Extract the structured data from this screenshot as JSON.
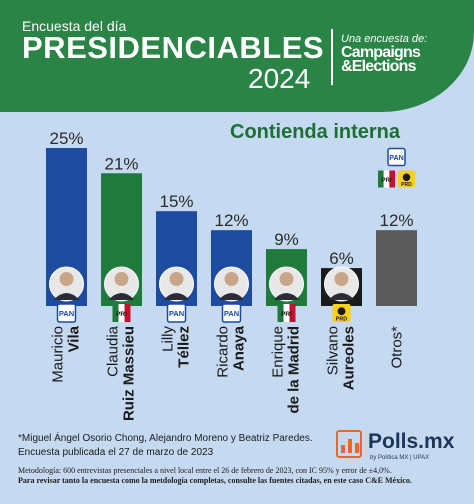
{
  "header": {
    "kicker": "Encuesta del día",
    "title": "PRESIDENCIABLES",
    "year": "2024",
    "partner_kicker": "Una encuesta de:",
    "partner_name": "Campaigns &Elections"
  },
  "subtitle": "Contienda interna",
  "chart_data": {
    "type": "bar",
    "categories": [
      "Mauricio Vila",
      "Claudia Ruiz Massieu",
      "Lilly Téllez",
      "Ricardo Anaya",
      "Enrique de la Madrid",
      "Silvano Aureoles",
      "Otros*"
    ],
    "values": [
      25,
      21,
      15,
      12,
      9,
      6,
      12
    ],
    "value_labels": [
      "25%",
      "21%",
      "15%",
      "12%",
      "9%",
      "6%",
      "12%"
    ],
    "first_names": [
      "Mauricio",
      "Claudia",
      "Lilly",
      "Ricardo",
      "Enrique",
      "Silvano",
      "Otros*"
    ],
    "last_names": [
      "Vila",
      "Ruiz Massieu",
      "Téllez",
      "Anaya",
      "de la Madrid",
      "Aureoles",
      ""
    ],
    "parties": [
      "PAN",
      "PRI",
      "PAN",
      "PAN",
      "PRI",
      "PRD",
      ""
    ],
    "bar_colors": [
      "#1d4ba0",
      "#1f7a3c",
      "#1d4ba0",
      "#1d4ba0",
      "#1f7a3c",
      "#1a1a1a",
      "#5a5a5a"
    ],
    "others_parties": [
      "PAN",
      "PRI",
      "PRD"
    ],
    "ylim": [
      0,
      25
    ],
    "grid": false,
    "legend": "none"
  },
  "footnote": {
    "line1": "*Miguel Ángel Osorio Chong, Alejandro Moreno y Beatriz Paredes.",
    "line2": "Encuesta publicada el 27 de marzo de 2023"
  },
  "methodology": {
    "text": "Metodología: 600 entrevistas presenciales a nivel local entre el 26 de febrero de 2023, con IC 95% y error de ±4,0%.",
    "strong": "Para revisar tanto la encuesta como la metdología completas, consulte las fuentes citadas, en este caso C&E México."
  },
  "brand": {
    "name": "Polls.mx",
    "sub": "by Política MX  |  UPAX"
  },
  "colors": {
    "header_green": "#2a8446",
    "background": "#c5d9f0",
    "pan_blue": "#1d4ba0",
    "pri_green": "#1f7a3c",
    "prd_yellow": "#f6d21d",
    "others_gray": "#5a5a5a"
  }
}
